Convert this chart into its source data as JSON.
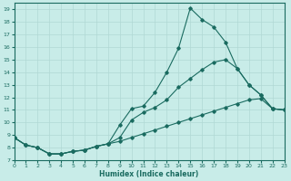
{
  "xlabel": "Humidex (Indice chaleur)",
  "bg_color": "#c8ece8",
  "grid_color": "#b0d8d4",
  "line_color": "#1a6b60",
  "xlim": [
    0,
    23
  ],
  "ylim": [
    7,
    19.5
  ],
  "yticks": [
    7,
    8,
    9,
    10,
    11,
    12,
    13,
    14,
    15,
    16,
    17,
    18,
    19
  ],
  "xticks": [
    0,
    1,
    2,
    3,
    4,
    5,
    6,
    7,
    8,
    9,
    10,
    11,
    12,
    13,
    14,
    15,
    16,
    17,
    18,
    19,
    20,
    21,
    22,
    23
  ],
  "line1_x": [
    0,
    1,
    2,
    3,
    4,
    5,
    6,
    7,
    8,
    9,
    10,
    11,
    12,
    13,
    14,
    15,
    16,
    17,
    18,
    19,
    20,
    21,
    22,
    23
  ],
  "line1_y": [
    8.8,
    8.2,
    8.0,
    7.5,
    7.5,
    7.7,
    7.8,
    8.1,
    8.3,
    9.8,
    11.1,
    11.3,
    12.4,
    14.0,
    15.9,
    19.1,
    18.2,
    17.6,
    16.4,
    14.3,
    13.0,
    12.2,
    11.1,
    11.0
  ],
  "line2_x": [
    0,
    1,
    2,
    3,
    4,
    5,
    6,
    7,
    8,
    9,
    10,
    11,
    12,
    13,
    14,
    15,
    16,
    17,
    18,
    19,
    20,
    21,
    22,
    23
  ],
  "line2_y": [
    8.8,
    8.2,
    8.0,
    7.5,
    7.5,
    7.7,
    7.8,
    8.1,
    8.3,
    8.8,
    10.2,
    10.8,
    11.2,
    11.8,
    12.8,
    13.5,
    14.2,
    14.8,
    15.0,
    14.3,
    13.0,
    12.2,
    11.1,
    11.0
  ],
  "line3_x": [
    0,
    1,
    2,
    3,
    4,
    5,
    6,
    7,
    8,
    9,
    10,
    11,
    12,
    13,
    14,
    15,
    16,
    17,
    18,
    19,
    20,
    21,
    22,
    23
  ],
  "line3_y": [
    8.8,
    8.2,
    8.0,
    7.5,
    7.5,
    7.7,
    7.8,
    8.1,
    8.3,
    8.5,
    8.8,
    9.1,
    9.4,
    9.7,
    10.0,
    10.3,
    10.6,
    10.9,
    11.2,
    11.5,
    11.8,
    11.9,
    11.1,
    11.0
  ]
}
